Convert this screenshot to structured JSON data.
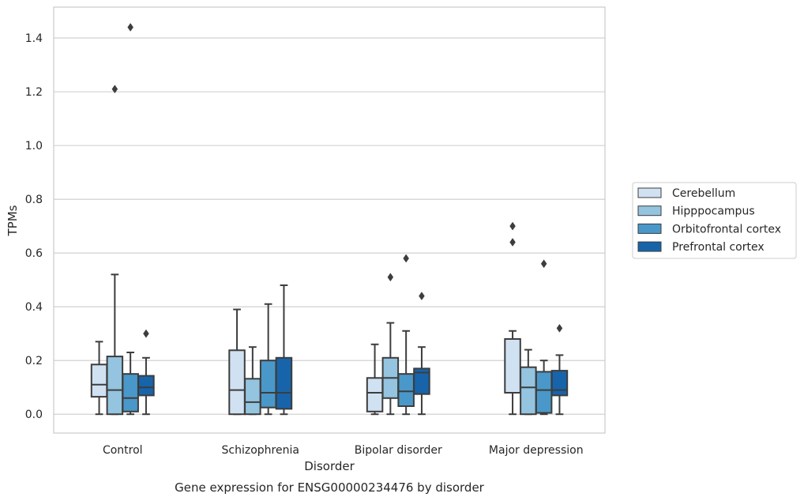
{
  "chart_data": {
    "type": "boxplot",
    "title": "",
    "caption": "Gene expression for ENSG00000234476 by disorder",
    "xlabel": "Disorder",
    "ylabel": "TPMs",
    "ylim": [
      -0.07,
      1.515
    ],
    "yticks": [
      0.0,
      0.2,
      0.4,
      0.6,
      0.8,
      1.0,
      1.2,
      1.4
    ],
    "ytick_labels": [
      "0.0",
      "0.2",
      "0.4",
      "0.6",
      "0.8",
      "1.0",
      "1.2",
      "1.4"
    ],
    "grid": "horizontal",
    "legend_position": "outside-right",
    "categories": [
      "Control",
      "Schizophrenia",
      "Bipolar disorder",
      "Major depression"
    ],
    "series": [
      {
        "name": "Cerebellum",
        "color": "#d0e1f2",
        "boxes": [
          {
            "whislo": 0.0,
            "q1": 0.065,
            "med": 0.11,
            "q3": 0.185,
            "whishi": 0.27,
            "fliers": []
          },
          {
            "whislo": 0.0,
            "q1": 0.0,
            "med": 0.09,
            "q3": 0.238,
            "whishi": 0.39,
            "fliers": []
          },
          {
            "whislo": 0.0,
            "q1": 0.01,
            "med": 0.08,
            "q3": 0.135,
            "whishi": 0.26,
            "fliers": []
          },
          {
            "whislo": 0.0,
            "q1": 0.08,
            "med": 0.08,
            "q3": 0.28,
            "whishi": 0.31,
            "fliers": [
              0.64,
              0.7
            ]
          }
        ]
      },
      {
        "name": "Hipppocampus",
        "color": "#94c4df",
        "boxes": [
          {
            "whislo": 0.0,
            "q1": 0.0,
            "med": 0.09,
            "q3": 0.215,
            "whishi": 0.52,
            "fliers": [
              1.21
            ]
          },
          {
            "whislo": 0.0,
            "q1": 0.0,
            "med": 0.045,
            "q3": 0.132,
            "whishi": 0.25,
            "fliers": []
          },
          {
            "whislo": 0.0,
            "q1": 0.06,
            "med": 0.135,
            "q3": 0.21,
            "whishi": 0.34,
            "fliers": [
              0.51
            ]
          },
          {
            "whislo": 0.0,
            "q1": 0.0,
            "med": 0.1,
            "q3": 0.175,
            "whishi": 0.24,
            "fliers": []
          }
        ]
      },
      {
        "name": "Orbitofrontal cortex",
        "color": "#4a98c9",
        "boxes": [
          {
            "whislo": 0.0,
            "q1": 0.01,
            "med": 0.06,
            "q3": 0.15,
            "whishi": 0.23,
            "fliers": [
              1.44
            ]
          },
          {
            "whislo": 0.0,
            "q1": 0.025,
            "med": 0.08,
            "q3": 0.2,
            "whishi": 0.41,
            "fliers": []
          },
          {
            "whislo": 0.0,
            "q1": 0.03,
            "med": 0.085,
            "q3": 0.15,
            "whishi": 0.31,
            "fliers": [
              0.58
            ]
          },
          {
            "whislo": 0.0,
            "q1": 0.005,
            "med": 0.09,
            "q3": 0.158,
            "whishi": 0.2,
            "fliers": [
              0.56
            ]
          }
        ]
      },
      {
        "name": "Prefrontal cortex",
        "color": "#1764ab",
        "boxes": [
          {
            "whislo": 0.0,
            "q1": 0.07,
            "med": 0.1,
            "q3": 0.143,
            "whishi": 0.21,
            "fliers": [
              0.3
            ]
          },
          {
            "whislo": 0.0,
            "q1": 0.02,
            "med": 0.08,
            "q3": 0.21,
            "whishi": 0.48,
            "fliers": []
          },
          {
            "whislo": 0.0,
            "q1": 0.075,
            "med": 0.155,
            "q3": 0.17,
            "whishi": 0.25,
            "fliers": [
              0.44
            ]
          },
          {
            "whislo": 0.0,
            "q1": 0.07,
            "med": 0.09,
            "q3": 0.162,
            "whishi": 0.22,
            "fliers": [
              0.32
            ]
          }
        ]
      }
    ]
  }
}
